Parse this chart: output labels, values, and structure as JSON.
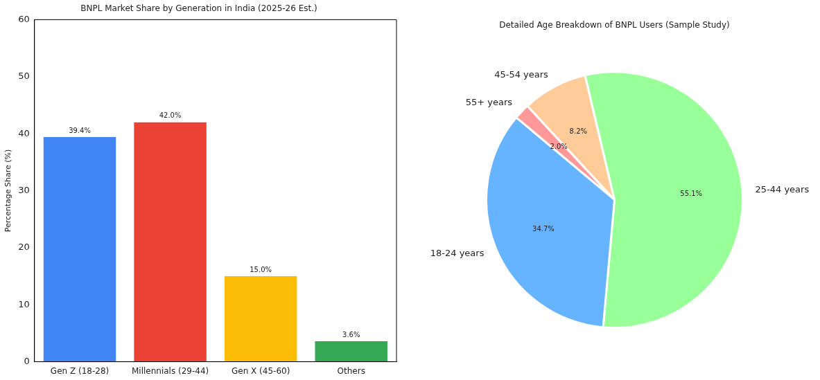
{
  "chart_data": [
    {
      "type": "bar",
      "title": "BNPL Market Share by Generation in India (2025-26 Est.)",
      "ylabel": "Percentage Share (%)",
      "categories": [
        "Gen Z (18-28)",
        "Millennials (29-44)",
        "Gen X (45-60)",
        "Others"
      ],
      "values": [
        39.4,
        42.0,
        15.0,
        3.6
      ],
      "colors": [
        "#4285f4",
        "#ea4335",
        "#fbbc05",
        "#34a853"
      ],
      "value_labels": [
        "39.4%",
        "42.0%",
        "15.0%",
        "3.6%"
      ],
      "ylim": [
        0,
        60
      ],
      "yticks": [
        0,
        10,
        20,
        30,
        40,
        50,
        60
      ],
      "legend": false
    },
    {
      "type": "pie",
      "title": "Detailed Age Breakdown of BNPL Users (Sample Study)",
      "categories": [
        "18-24 years",
        "25-44 years",
        "45-54 years",
        "55+ years"
      ],
      "values": [
        34.7,
        55.1,
        8.2,
        2.0
      ],
      "colors": [
        "#66b3ff",
        "#99ff99",
        "#ffcc99",
        "#ff9999"
      ],
      "value_labels": [
        "34.7%",
        "55.1%",
        "8.2%",
        "2.0%"
      ],
      "legend": false
    }
  ]
}
